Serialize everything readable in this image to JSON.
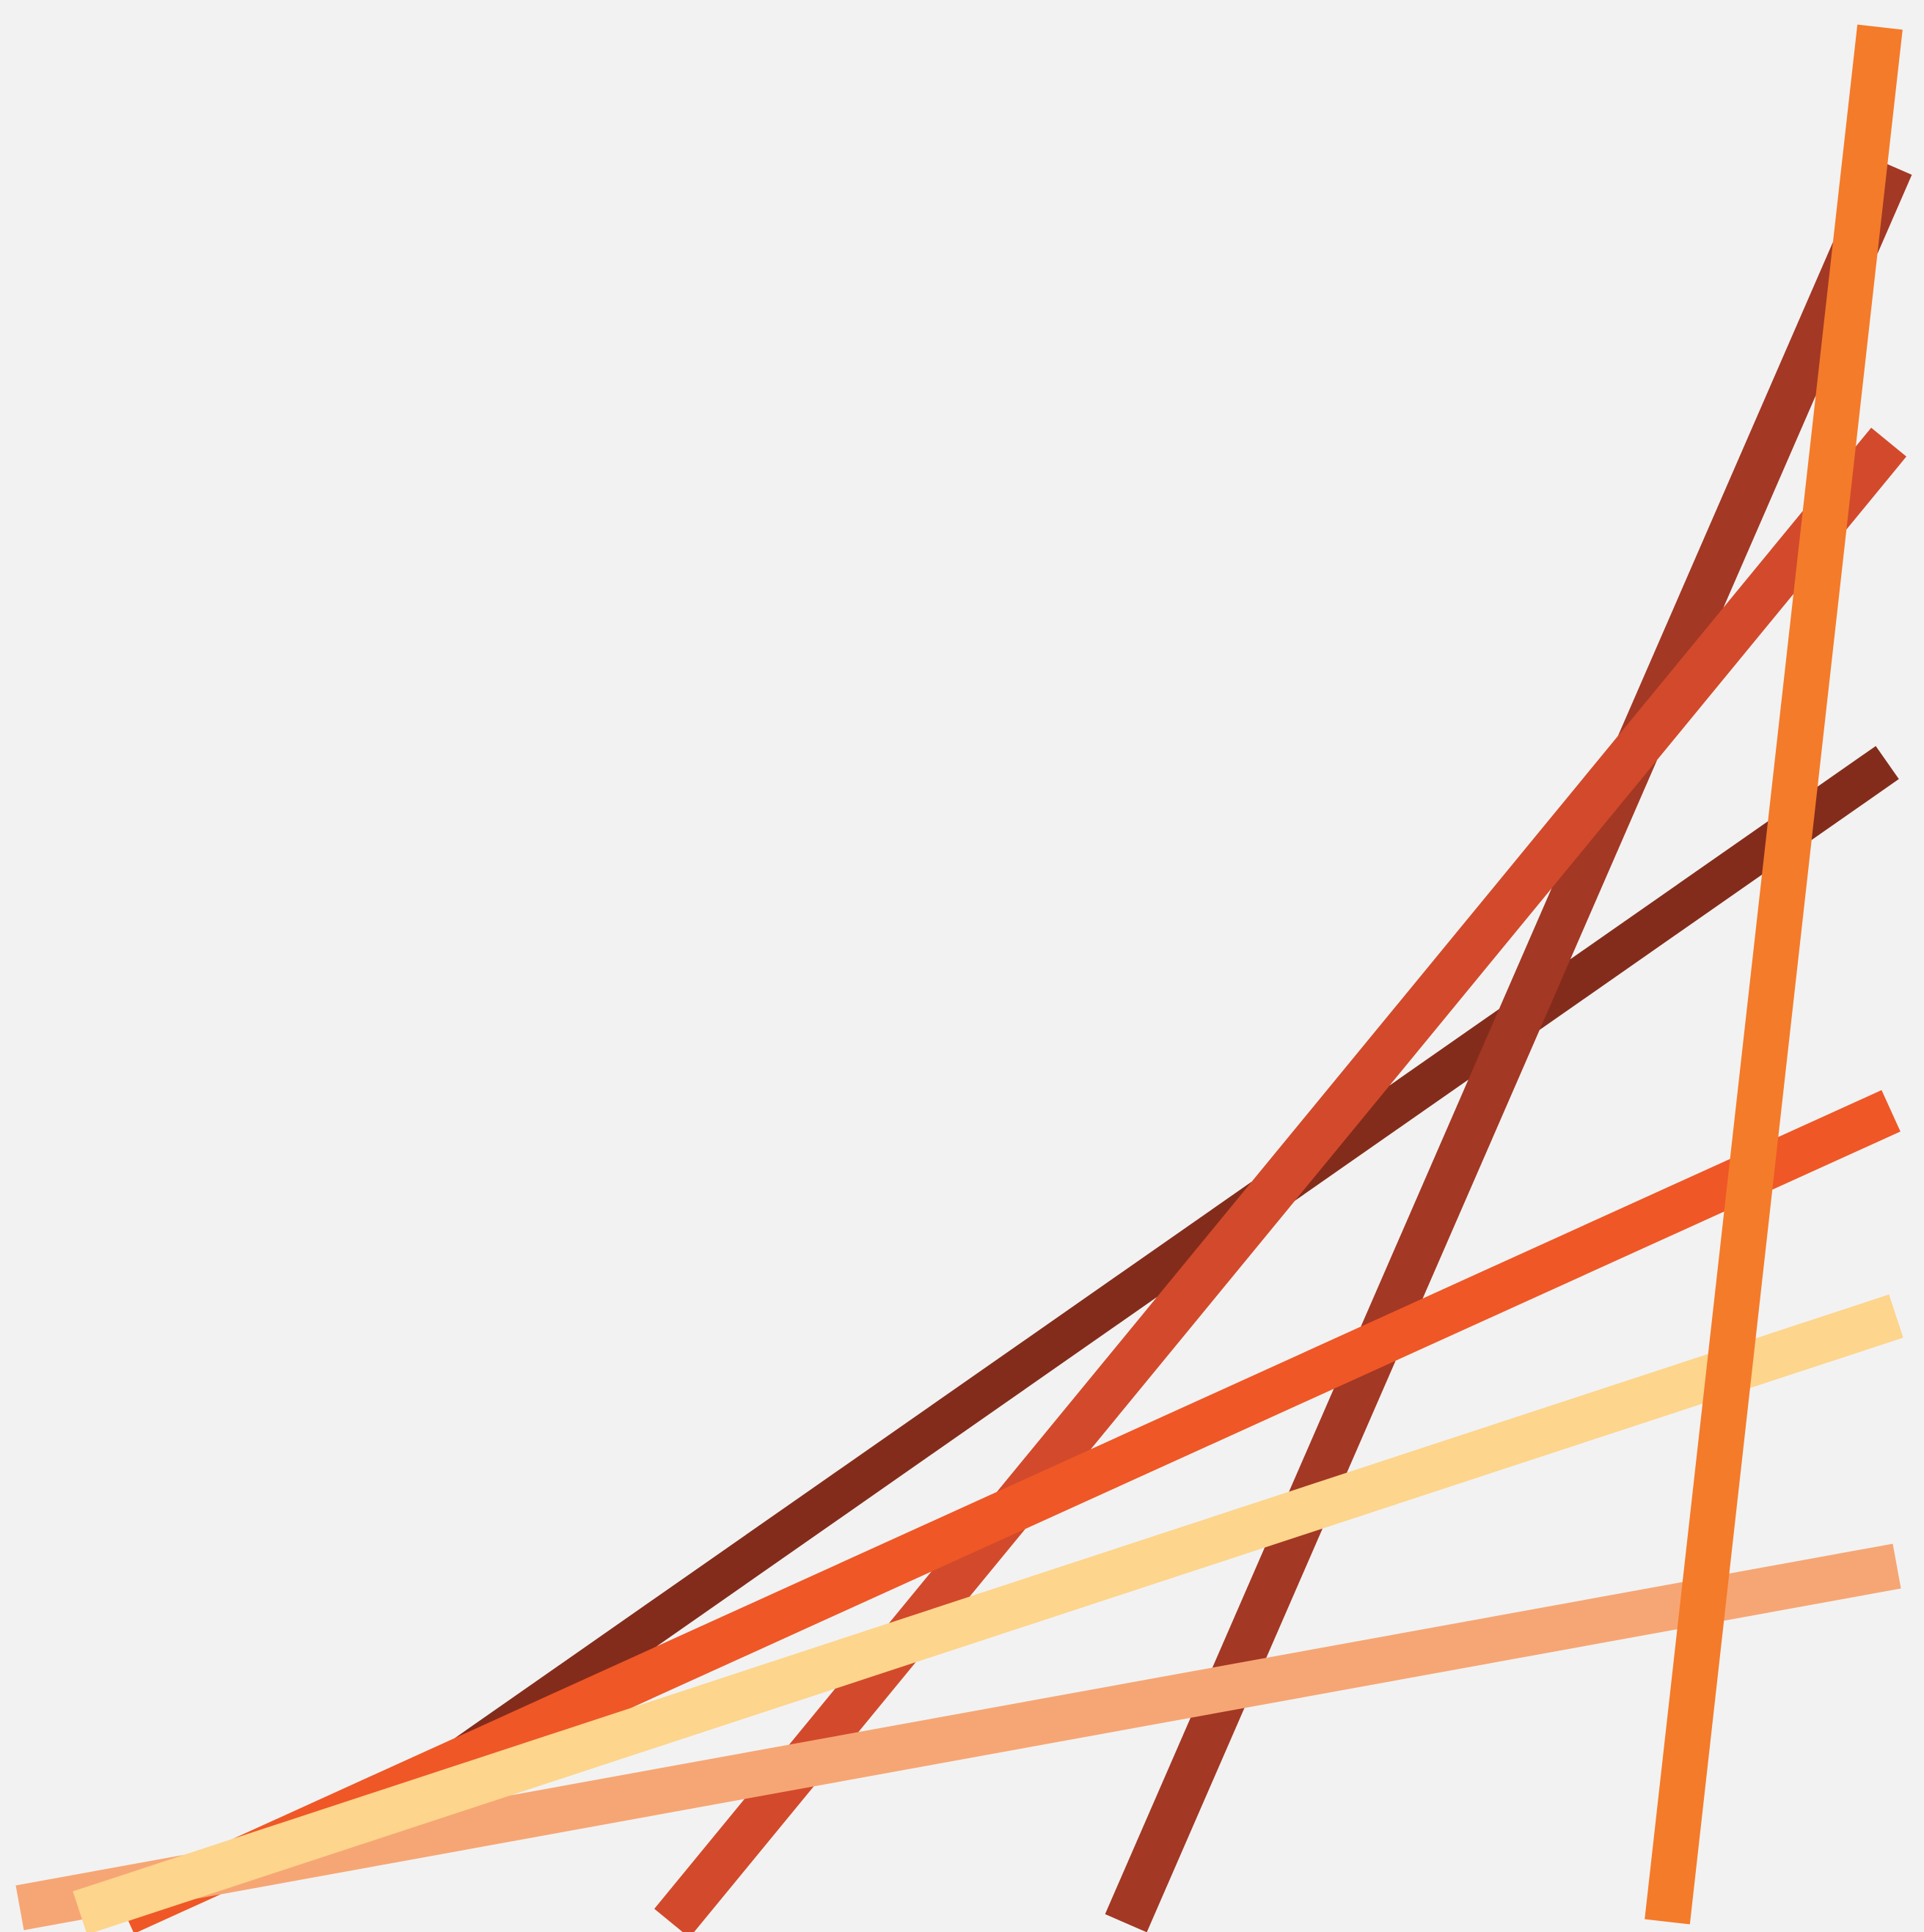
{
  "artwork": {
    "background_color": "#f2f2f2",
    "stripe_colors": {
      "dark_brown": "#842c1b",
      "rust": "#a33824",
      "burnt_orange": "#d24a2b",
      "orange_red": "#ef5726",
      "amber": "#f47b2a",
      "salmon": "#f6a674",
      "pale_yellow": "#fdd58c"
    }
  }
}
